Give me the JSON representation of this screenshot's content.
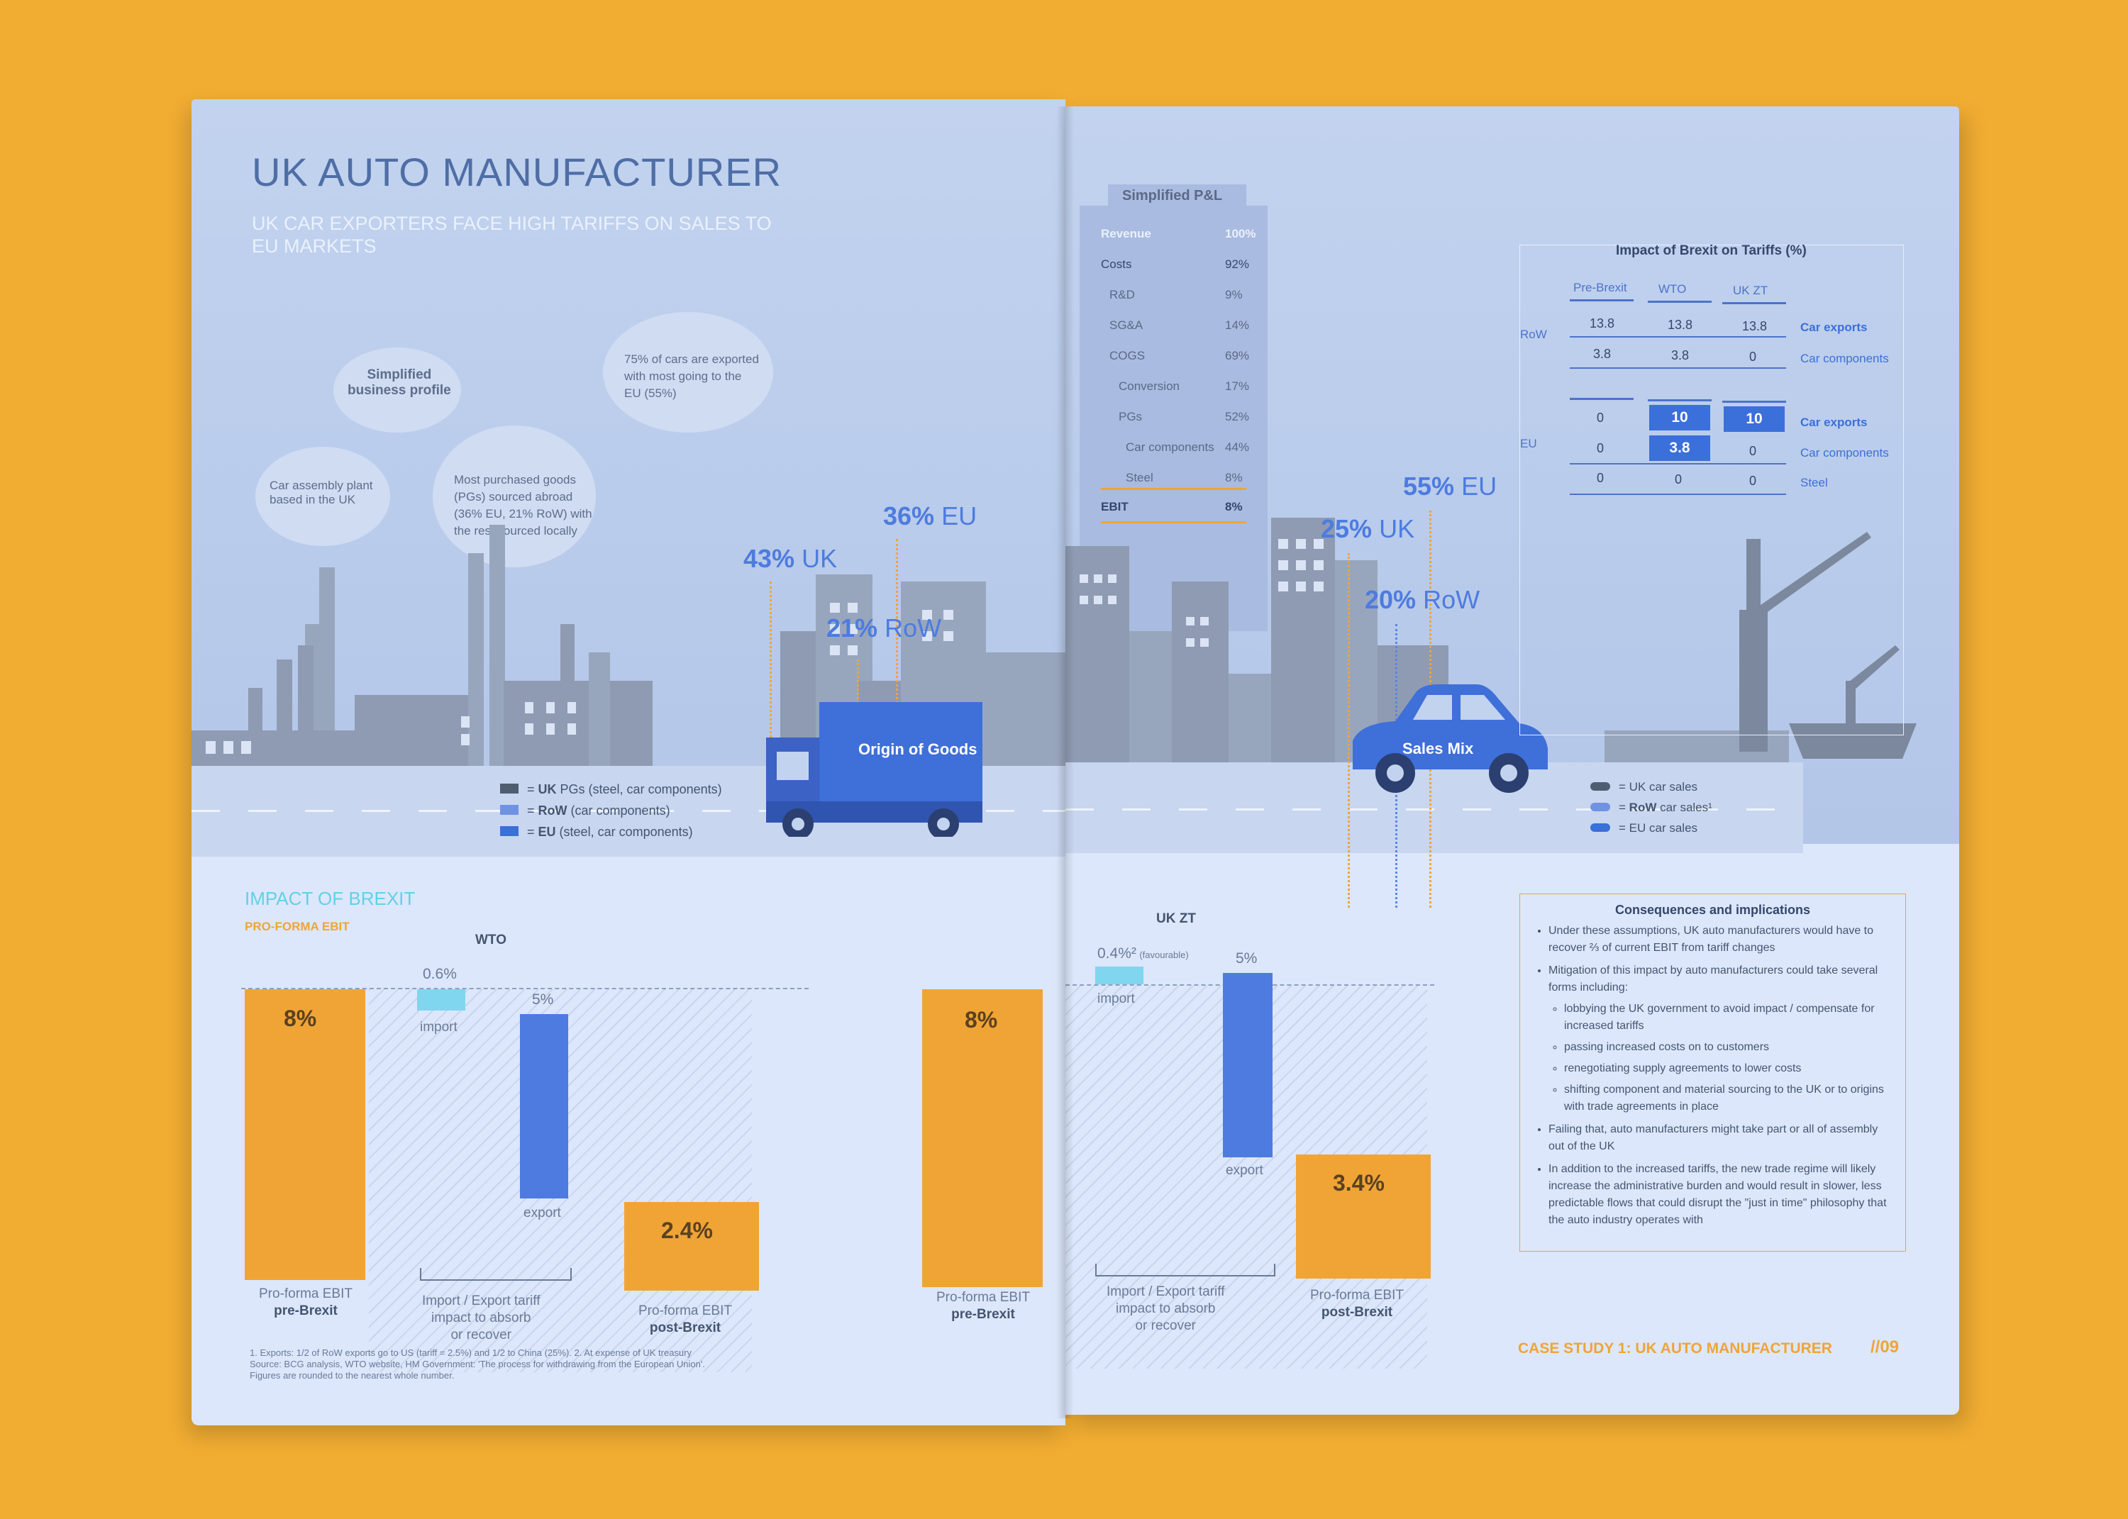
{
  "left": {
    "title": "UK AUTO MANUFACTURER",
    "subtitle_line1": "UK CAR EXPORTERS FACE HIGH TARIFFS ON SALES TO",
    "subtitle_line2": "EU MARKETS",
    "cloud_profile": "Simplified\nbusiness profile",
    "cloud_assembly": "Car assembly plant\nbased in the UK",
    "cloud_goods": "Most purchased goods\n(PGs) sourced abroad\n(36% EU, 21% RoW) with\nthe rest sourced locally",
    "cloud_export": "75% of cars are exported\nwith most going to the\nEU (55%)",
    "origin": {
      "uk_pct": "43%",
      "uk_label": "UK",
      "eu_pct": "36%",
      "eu_label": "EU",
      "row_pct": "21%",
      "row_label": "RoW",
      "truck_label": "Origin of Goods"
    },
    "legend": [
      {
        "sym": "=",
        "bold": "UK",
        "rest": " PGs (steel, car components)"
      },
      {
        "sym": "=",
        "bold": "RoW",
        "rest": " (car components)"
      },
      {
        "sym": "=",
        "bold": "EU",
        "rest": " (steel, car components)"
      }
    ],
    "impact_title": "IMPACT OF BREXIT",
    "impact_sub": "PRO-FORMA EBIT",
    "wto": {
      "heading": "WTO",
      "pre_value": "8%",
      "import_value": "0.6%",
      "import_label": "import",
      "export_value": "5%",
      "export_label": "export",
      "post_value": "2.4%",
      "pre_caption1": "Pro-forma EBIT",
      "pre_caption2": "pre-Brexit",
      "mid_caption": "Import / Export tariff\nimpact to absorb\nor recover",
      "post_caption1": "Pro-forma EBIT",
      "post_caption2": "post-Brexit"
    },
    "footnote1": "1. Exports: 1/2 of RoW exports go to US (tariff = 2.5%) and 1/2 to China (25%). 2. At expense of UK treasury",
    "footnote2": "Source: BCG analysis, WTO website, HM Government: 'The process for withdrawing from the European Union'.",
    "footnote3": "Figures are rounded to the nearest whole number."
  },
  "right": {
    "pl": {
      "title": "Simplified P&L",
      "rows": [
        {
          "label": "Revenue",
          "value": "100%"
        },
        {
          "label": "Costs",
          "value": "92%"
        },
        {
          "label": "R&D",
          "value": "9%"
        },
        {
          "label": "SG&A",
          "value": "14%"
        },
        {
          "label": "COGS",
          "value": "69%"
        },
        {
          "label": "Conversion",
          "value": "17%"
        },
        {
          "label": "PGs",
          "value": "52%"
        },
        {
          "label": "Car components",
          "value": "44%"
        },
        {
          "label": "Steel",
          "value": "8%"
        },
        {
          "label": "EBIT",
          "value": "8%"
        }
      ]
    },
    "sales": {
      "eu_pct": "55%",
      "eu_label": "EU",
      "uk_pct": "25%",
      "uk_label": "UK",
      "row_pct": "20%",
      "row_label": "RoW",
      "car_label": "Sales Mix"
    },
    "car_legend": [
      {
        "sym": "=",
        "text": "UK car sales"
      },
      {
        "sym": "=",
        "bold": "RoW",
        "text": " car sales¹"
      },
      {
        "sym": "=",
        "text": "EU car sales"
      }
    ],
    "tariffs": {
      "title": "Impact of Brexit on Tariffs (%)",
      "cols": [
        "Pre-Brexit",
        "WTO",
        "UK ZT"
      ],
      "row_group": "RoW",
      "eu_group": "EU",
      "row_rows": [
        {
          "vals": [
            "13.8",
            "13.8",
            "13.8"
          ],
          "label": "Car exports"
        },
        {
          "vals": [
            "3.8",
            "3.8",
            "0"
          ],
          "label": "Car components"
        }
      ],
      "eu_rows": [
        {
          "vals": [
            "0",
            "10",
            "10"
          ],
          "label": "Car exports"
        },
        {
          "vals": [
            "0",
            "3.8",
            "0"
          ],
          "label": "Car components"
        },
        {
          "vals": [
            "0",
            "0",
            "0"
          ],
          "label": "Steel"
        }
      ]
    },
    "ukzt": {
      "heading": "UK ZT",
      "pre_value": "8%",
      "import_value": "0.4%²",
      "import_note": "(favourable)",
      "import_label": "import",
      "export_value": "5%",
      "export_label": "export",
      "post_value": "3.4%",
      "pre_caption1": "Pro-forma EBIT",
      "pre_caption2": "pre-Brexit",
      "mid_caption": "Import / Export tariff\nimpact to absorb\nor recover",
      "post_caption1": "Pro-forma EBIT",
      "post_caption2": "post-Brexit"
    },
    "consequences": {
      "title": "Consequences and implications",
      "b1": "Under these assumptions, UK auto manufacturers would have to recover ⅔ of current EBIT from tariff changes",
      "b2": "Mitigation of this impact by auto manufacturers could take several forms including:",
      "s1": "lobbying the UK government to avoid impact / compensate for increased tariffs",
      "s2": "passing increased costs on to customers",
      "s3": "renegotiating supply agreements to lower costs",
      "s4": "shifting component and material sourcing to the UK or to origins with trade agreements in place",
      "b3": "Failing that, auto manufacturers might take part or all of assembly out of the UK",
      "b4": "In addition to the increased tariffs, the new trade regime will likely increase the administrative burden and would result in slower, less predictable flows that could disrupt the \"just in time\" philosophy that the auto industry operates with"
    },
    "footer_case": "CASE STUDY 1: UK AUTO MANUFACTURER",
    "footer_page": "//09"
  }
}
